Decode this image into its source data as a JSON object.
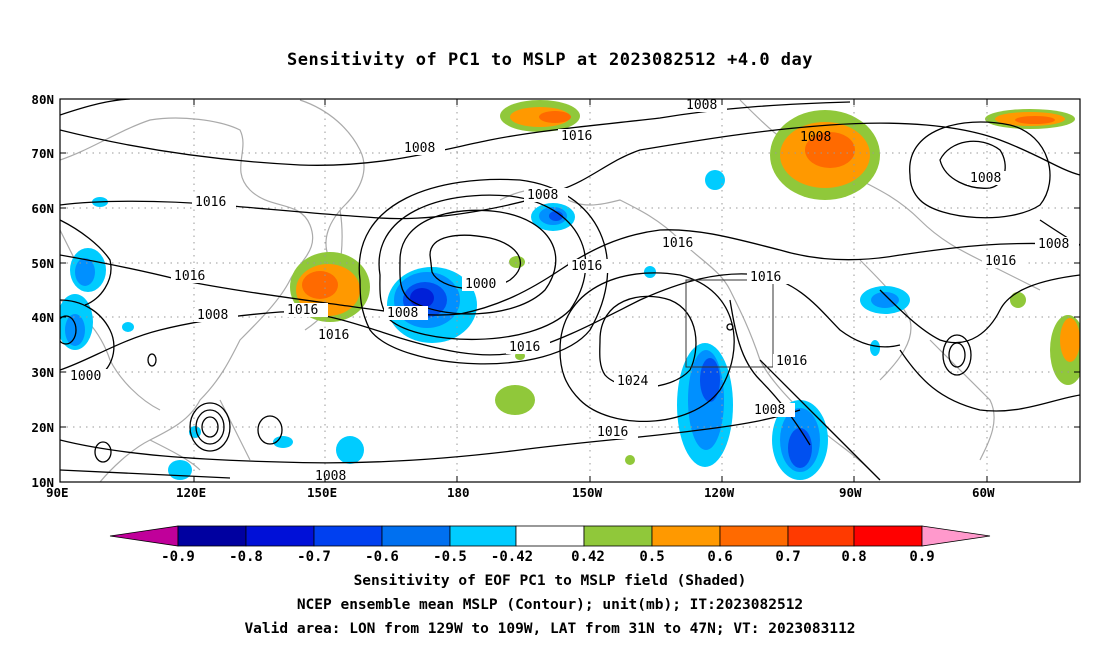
{
  "title": "Sensitivity of PC1 to MSLP at 2023082512 +4.0 day",
  "map": {
    "lon_range": [
      "90E",
      "50W"
    ],
    "lat_range": [
      "10N",
      "80N"
    ],
    "lon_labels": [
      "90E",
      "120E",
      "150E",
      "180",
      "150W",
      "120W",
      "90W",
      "60W"
    ],
    "lat_labels": [
      "10N",
      "20N",
      "30N",
      "40N",
      "50N",
      "60N",
      "70N",
      "80N"
    ],
    "contour_labels": [
      "1008",
      "1016",
      "1008",
      "1008",
      "1008",
      "1016",
      "1016",
      "1016",
      "1008",
      "1016",
      "1008",
      "1000",
      "1008",
      "1016",
      "1016",
      "1016",
      "1016",
      "1024",
      "1016",
      "1016",
      "1008",
      "1008",
      "1000",
      "1008",
      "1016",
      "1008"
    ],
    "valid_area_box": {
      "lon_from": "129W",
      "lon_to": "109W",
      "lat_from": "31N",
      "lat_to": "47N"
    }
  },
  "colorbar": {
    "labels": [
      "-0.9",
      "-0.8",
      "-0.7",
      "-0.6",
      "-0.5",
      "-0.42",
      "0.42",
      "0.5",
      "0.6",
      "0.7",
      "0.8",
      "0.9"
    ],
    "colors": [
      "#c0009a",
      "#0000a0",
      "#0010d8",
      "#0040f0",
      "#0070f0",
      "#00a0ff",
      "#00ccff",
      "#ffffff",
      "#90c83a",
      "#ff9900",
      "#ff6a00",
      "#ff3a00",
      "#ff0000",
      "#ff99cc"
    ]
  },
  "footer": {
    "line1": "Sensitivity of EOF PC1 to MSLP field (Shaded)",
    "line2": "NCEP ensemble mean MSLP (Contour); unit(mb); IT:2023082512",
    "line3": "Valid area: LON from 129W to 109W, LAT from 31N to 47N; VT: 2023083112"
  }
}
